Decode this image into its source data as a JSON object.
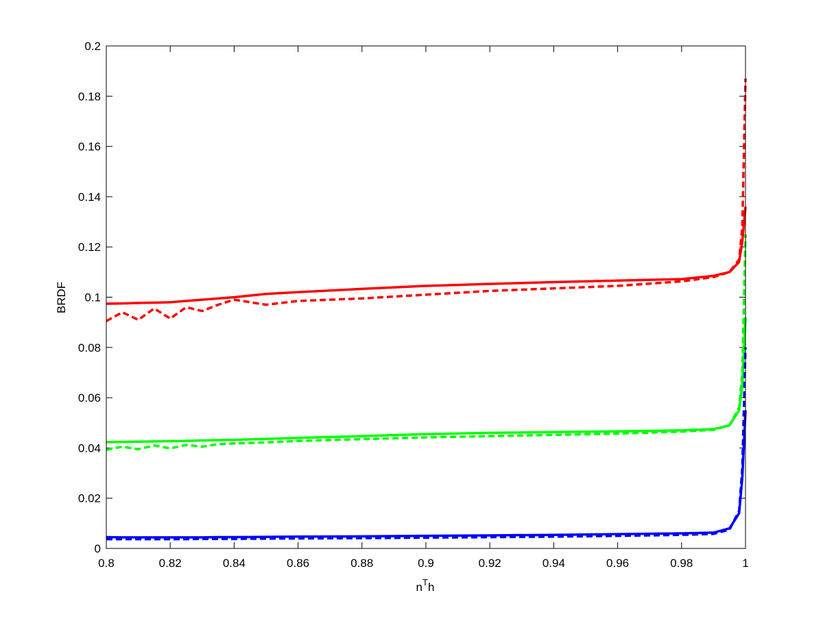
{
  "chart_data": {
    "type": "line",
    "ylabel": "BRDF",
    "xlabel": [
      "n",
      "T",
      "h"
    ],
    "x": [
      0.8,
      0.805,
      0.81,
      0.815,
      0.82,
      0.825,
      0.83,
      0.835,
      0.84,
      0.85,
      0.86,
      0.88,
      0.9,
      0.92,
      0.94,
      0.96,
      0.98,
      0.99,
      0.995,
      0.998,
      0.999,
      1
    ],
    "series": [
      {
        "color": "#ff0000",
        "dash": false,
        "values": [
          0.0974,
          0.0975,
          0.0977,
          0.0978,
          0.098,
          0.0985,
          0.099,
          0.0995,
          0.1,
          0.1013,
          0.102,
          0.1033,
          0.1045,
          0.1053,
          0.106,
          0.1066,
          0.1072,
          0.1085,
          0.11,
          0.114,
          0.122,
          0.136
        ]
      },
      {
        "color": "#ff0000",
        "dash": true,
        "values": [
          0.0905,
          0.094,
          0.091,
          0.0955,
          0.0915,
          0.096,
          0.0945,
          0.097,
          0.099,
          0.097,
          0.0985,
          0.0995,
          0.101,
          0.1025,
          0.1035,
          0.1045,
          0.1063,
          0.108,
          0.11,
          0.115,
          0.128,
          0.187
        ]
      },
      {
        "color": "#00ff00",
        "dash": false,
        "values": [
          0.0423,
          0.0424,
          0.0425,
          0.0426,
          0.0427,
          0.0428,
          0.043,
          0.0431,
          0.0432,
          0.0436,
          0.044,
          0.0447,
          0.0455,
          0.046,
          0.0463,
          0.0466,
          0.047,
          0.0475,
          0.049,
          0.055,
          0.065,
          0.092
        ]
      },
      {
        "color": "#00ff00",
        "dash": true,
        "values": [
          0.0393,
          0.0405,
          0.0395,
          0.041,
          0.0398,
          0.0412,
          0.0405,
          0.0415,
          0.0418,
          0.0422,
          0.0428,
          0.0435,
          0.0442,
          0.0447,
          0.0452,
          0.0457,
          0.0465,
          0.0472,
          0.049,
          0.056,
          0.07,
          0.125
        ]
      },
      {
        "color": "#0000ff",
        "dash": false,
        "values": [
          0.0045,
          0.0044,
          0.0044,
          0.0044,
          0.0044,
          0.0044,
          0.0044,
          0.0045,
          0.0045,
          0.0046,
          0.0047,
          0.0048,
          0.005,
          0.0052,
          0.0054,
          0.0057,
          0.006,
          0.0063,
          0.008,
          0.014,
          0.028,
          0.055
        ]
      },
      {
        "color": "#0000ff",
        "dash": true,
        "values": [
          0.0037,
          0.0037,
          0.0037,
          0.0037,
          0.0037,
          0.0037,
          0.0038,
          0.0038,
          0.0038,
          0.0039,
          0.004,
          0.0041,
          0.0043,
          0.0045,
          0.0047,
          0.005,
          0.0054,
          0.0058,
          0.0075,
          0.015,
          0.032,
          0.08
        ]
      }
    ],
    "xlim": [
      0.8,
      1
    ],
    "xticks": [
      0.8,
      0.82,
      0.84,
      0.86,
      0.88,
      0.9,
      0.92,
      0.94,
      0.96,
      0.98,
      1
    ],
    "ylim": [
      0,
      0.2
    ],
    "yticks": [
      0,
      0.02,
      0.04,
      0.06,
      0.08,
      0.1,
      0.12,
      0.14,
      0.16,
      0.18,
      0.2
    ],
    "grid": false
  }
}
